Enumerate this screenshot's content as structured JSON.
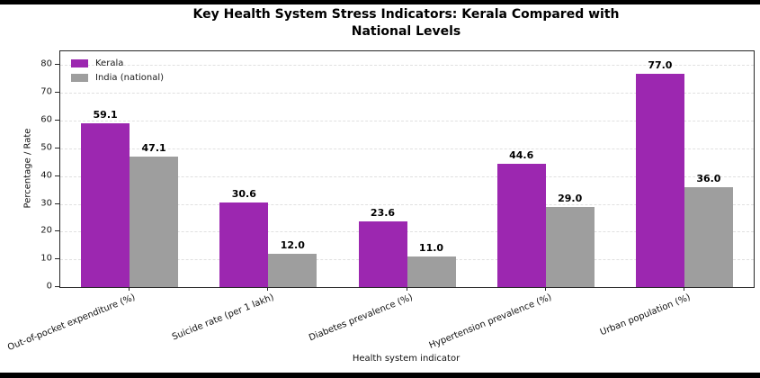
{
  "chart_data": {
    "type": "bar",
    "title": "Key Health System Stress Indicators: Kerala Compared with National Levels",
    "title_lines": [
      "Key Health System Stress Indicators: Kerala Compared with",
      "National Levels"
    ],
    "categories": [
      "Out-of-pocket expenditure (%)",
      "Suicide rate (per 1 lakh)",
      "Diabetes prevalence (%)",
      "Hypertension prevalence (%)",
      "Urban population (%)"
    ],
    "series": [
      {
        "name": "Kerala",
        "color": "#9C27B0",
        "values": [
          59.1,
          30.6,
          23.6,
          44.6,
          77.0
        ]
      },
      {
        "name": "India (national)",
        "color": "#9E9E9E",
        "values": [
          47.1,
          12.0,
          11.0,
          29.0,
          36.0
        ]
      }
    ],
    "xlabel": "Health system indicator",
    "ylabel": "Percentage / Rate",
    "ylim": [
      0,
      85
    ],
    "yticks": [
      0,
      10,
      20,
      30,
      40,
      50,
      60,
      70,
      80
    ],
    "grid": "horizontal-dashed",
    "legend_position": "upper-left",
    "value_label_format": "one-decimal"
  },
  "colors": {
    "kerala_bar": "#9C27B0",
    "india_bar": "#9E9E9E",
    "spine": "#262626",
    "gridline": "#e0e0e0",
    "frame_border": "#000000"
  }
}
